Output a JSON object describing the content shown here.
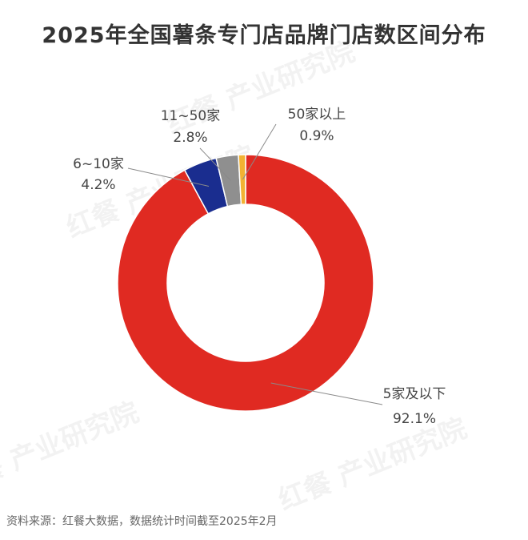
{
  "chart_data": {
    "type": "pie",
    "title": "2025年全国薯条专门店品牌门店数区间分布",
    "slices": [
      {
        "label": "5家及以下",
        "value": 92.1,
        "value_label": "92.1%",
        "color": "#e02a22"
      },
      {
        "label": "6~10家",
        "value": 4.2,
        "value_label": "4.2%",
        "color": "#1a2d8f"
      },
      {
        "label": "11~50家",
        "value": 2.8,
        "value_label": "2.8%",
        "color": "#8f8f8f"
      },
      {
        "label": "50家以上",
        "value": 0.9,
        "value_label": "0.9%",
        "color": "#f2b233"
      }
    ],
    "style": "donut"
  },
  "source": "资料来源：红餐大数据，数据统计时间截至2025年2月",
  "watermark": "红餐 产业研究院"
}
